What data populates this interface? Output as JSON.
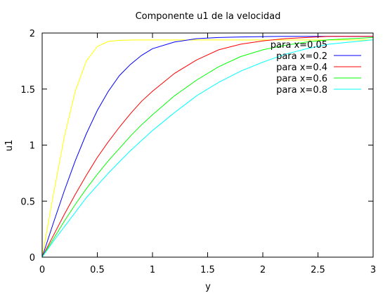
{
  "chart_data": {
    "type": "line",
    "title": "Componente u1 de la velocidad",
    "xlabel": "y",
    "ylabel": "u1",
    "xlim": [
      0,
      3
    ],
    "ylim": [
      0,
      2
    ],
    "x_ticks": [
      0,
      0.5,
      1,
      1.5,
      2,
      2.5,
      3
    ],
    "x_tick_labels": [
      "0",
      "0.5",
      "1",
      "1.5",
      "2",
      "2.5",
      "3"
    ],
    "y_ticks": [
      0,
      0.5,
      1,
      1.5,
      2
    ],
    "y_tick_labels": [
      "0",
      "0.5",
      "1",
      "1.5",
      "2"
    ],
    "grid": false,
    "legend_position": "top-right",
    "x": [
      0,
      0.1,
      0.2,
      0.3,
      0.4,
      0.5,
      0.6,
      0.7,
      0.8,
      0.9,
      1.0,
      1.2,
      1.4,
      1.6,
      1.8,
      2.0,
      2.2,
      2.4,
      2.6,
      2.8,
      3.0
    ],
    "series": [
      {
        "name": "para x=0.05",
        "color": "#ffff00",
        "values": [
          0,
          0.55,
          1.07,
          1.48,
          1.75,
          1.88,
          1.925,
          1.935,
          1.937,
          1.938,
          1.938,
          1.938,
          1.938,
          1.938,
          1.938,
          1.938,
          1.938,
          1.938,
          1.938,
          1.938,
          1.938
        ]
      },
      {
        "name": "para x=0.2",
        "color": "#0000ff",
        "values": [
          0,
          0.3,
          0.59,
          0.86,
          1.1,
          1.31,
          1.48,
          1.62,
          1.72,
          1.8,
          1.86,
          1.92,
          1.95,
          1.96,
          1.965,
          1.968,
          1.97,
          1.97,
          1.97,
          1.97,
          1.97
        ]
      },
      {
        "name": "para x=0.4",
        "color": "#ff0000",
        "values": [
          0,
          0.19,
          0.38,
          0.56,
          0.73,
          0.89,
          1.03,
          1.16,
          1.28,
          1.39,
          1.48,
          1.64,
          1.76,
          1.85,
          1.9,
          1.93,
          1.95,
          1.96,
          1.97,
          1.97,
          1.97
        ]
      },
      {
        "name": "para x=0.6",
        "color": "#00ff00",
        "values": [
          0,
          0.16,
          0.32,
          0.47,
          0.61,
          0.74,
          0.86,
          0.97,
          1.08,
          1.18,
          1.27,
          1.44,
          1.58,
          1.7,
          1.79,
          1.85,
          1.89,
          1.92,
          1.94,
          1.95,
          1.96
        ]
      },
      {
        "name": "para x=0.8",
        "color": "#00ffff",
        "values": [
          0,
          0.14,
          0.27,
          0.4,
          0.53,
          0.64,
          0.75,
          0.85,
          0.95,
          1.04,
          1.13,
          1.29,
          1.44,
          1.56,
          1.66,
          1.74,
          1.81,
          1.86,
          1.9,
          1.92,
          1.94
        ]
      }
    ]
  }
}
